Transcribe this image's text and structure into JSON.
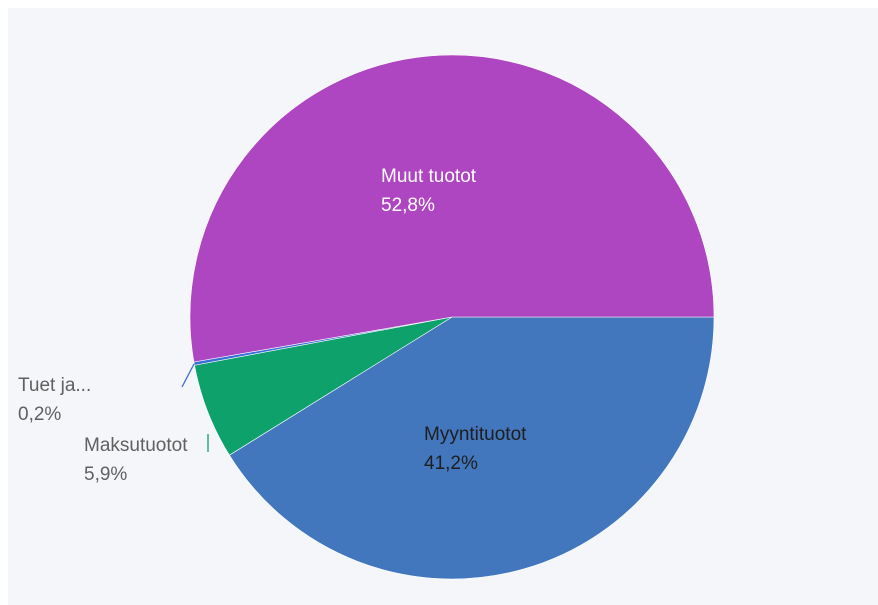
{
  "chart_data": {
    "type": "pie",
    "title": "",
    "slices": [
      {
        "label": "Myyntituotot",
        "display_label": "Myyntituotot",
        "value": 41.2,
        "value_label": "41,2%",
        "color": "#4277be",
        "label_color": "#1e1e1e"
      },
      {
        "label": "Maksutuotot",
        "display_label": "Maksutuotot",
        "value": 5.9,
        "value_label": "5,9%",
        "color": "#0ea16b",
        "label_color": "#606060"
      },
      {
        "label": "Tuet ja...",
        "display_label": "Tuet ja...",
        "value": 0.2,
        "value_label": "0,2%",
        "color": "#3a6fd6",
        "label_color": "#606060"
      },
      {
        "label": "Muut tuotot",
        "display_label": "Muut tuotot",
        "value": 52.8,
        "value_label": "52,8%",
        "color": "#af46c1",
        "label_color": "#ffffff"
      }
    ]
  }
}
